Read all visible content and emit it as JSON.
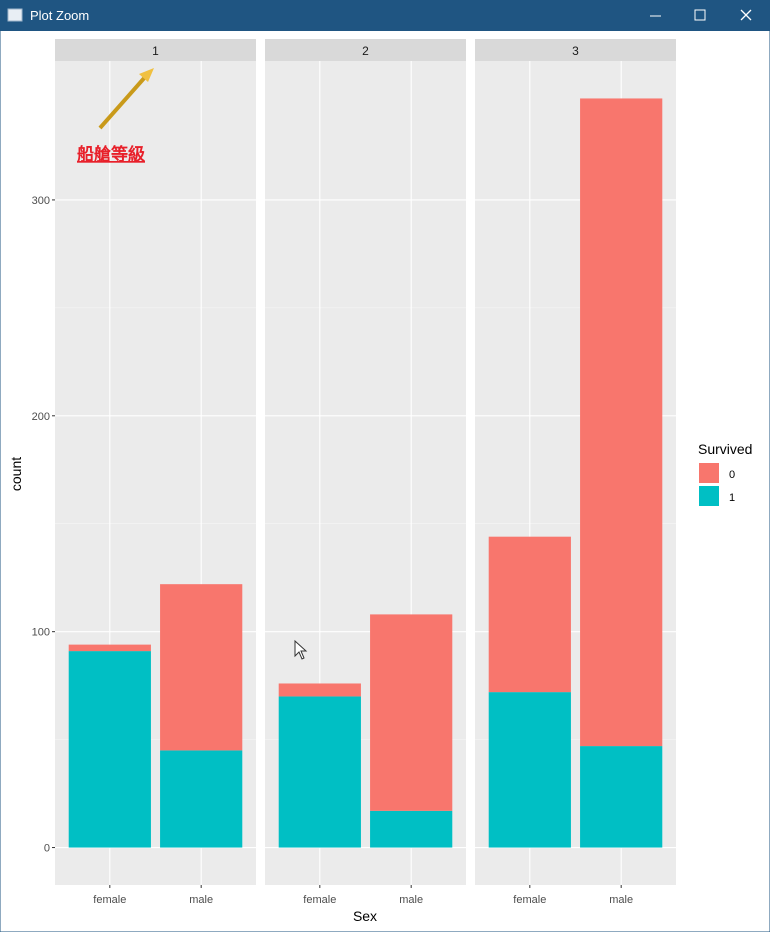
{
  "window": {
    "title": "Plot Zoom"
  },
  "chart_data": {
    "type": "bar",
    "stacked": true,
    "facets": [
      "1",
      "2",
      "3"
    ],
    "categories": [
      "female",
      "male"
    ],
    "xlabel": "Sex",
    "ylabel": "count",
    "legend_title": "Survived",
    "legend": "right",
    "series": [
      {
        "name": "0",
        "color": "#F8766D",
        "values": [
          [
            3,
            77
          ],
          [
            6,
            91
          ],
          [
            72,
            300
          ]
        ]
      },
      {
        "name": "1",
        "color": "#00BFC4",
        "values": [
          [
            91,
            45
          ],
          [
            70,
            17
          ],
          [
            72,
            47
          ]
        ]
      }
    ],
    "ylim": [
      -17.35,
      364.35
    ],
    "yticks": [
      0,
      100,
      200,
      300
    ],
    "grid": true,
    "annotation": "船艙等級"
  }
}
